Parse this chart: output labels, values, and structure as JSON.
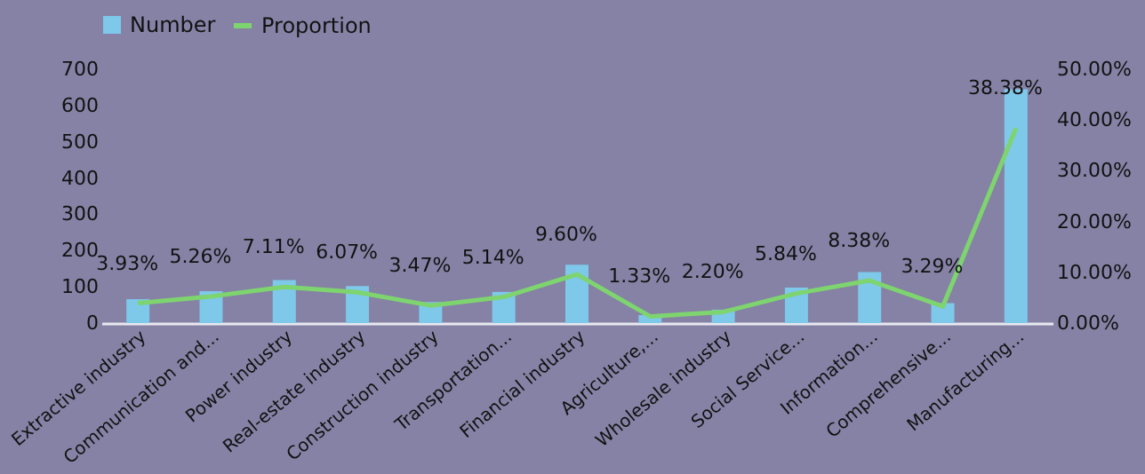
{
  "chart_data": {
    "type": "bar",
    "categories": [
      "Extractive industry",
      "Communication and...",
      "Power industry",
      "Real-estate industry",
      "Construction industry",
      "Transportation...",
      "Financial industry",
      "Agriculture,...",
      "Wholesale industry",
      "Social Service...",
      "Information...",
      "Comprehensive...",
      "Manufacturing..."
    ],
    "series": [
      {
        "name": "Number",
        "color": "#7ec8ea",
        "values": [
          66,
          88,
          119,
          102,
          58,
          86,
          161,
          22,
          37,
          98,
          141,
          55,
          645
        ]
      },
      {
        "name": "Proportion",
        "type": "line",
        "axis": "y2",
        "color": "#7ed46e",
        "values": [
          3.93,
          5.26,
          7.11,
          6.07,
          3.47,
          5.14,
          9.6,
          1.33,
          2.2,
          5.84,
          8.38,
          3.29,
          38.38
        ],
        "value_labels": [
          "3.93%",
          "5.26%",
          "7.11%",
          "6.07%",
          "3.47%",
          "5.14%",
          "9.60%",
          "1.33%",
          "2.20%",
          "5.84%",
          "8.38%",
          "3.29%",
          "38.38%"
        ]
      }
    ],
    "ylim": [
      0,
      700
    ],
    "yticks": [
      0,
      100,
      200,
      300,
      400,
      500,
      600,
      700
    ],
    "y2lim": [
      0,
      50
    ],
    "y2ticks": [
      {
        "value": 0,
        "label": "0.00%"
      },
      {
        "value": 10,
        "label": "10.00%"
      },
      {
        "value": 20,
        "label": "20.00%"
      },
      {
        "value": 30,
        "label": "30.00%"
      },
      {
        "value": 40,
        "label": "40.00%"
      },
      {
        "value": 50,
        "label": "50.00%"
      }
    ],
    "legend": "top",
    "grid": false,
    "marker": "none",
    "line_style": "solid"
  }
}
